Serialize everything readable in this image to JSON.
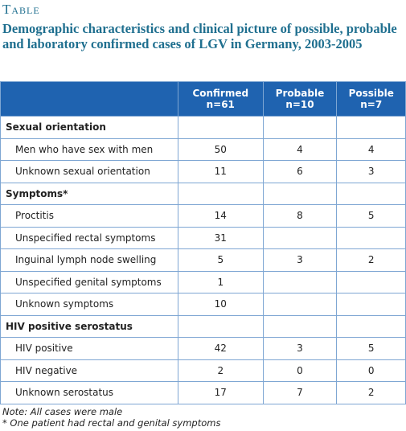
{
  "label": "Table",
  "title": "Demographic characteristics and clinical picture of possible, probable and laboratory confirmed cases of LGV in Germany, 2003-2005",
  "table": {
    "columns": [
      {
        "name": "Confirmed",
        "n": "n=61"
      },
      {
        "name": "Probable",
        "n": "n=10"
      },
      {
        "name": "Possible",
        "n": "n=7"
      }
    ],
    "sections": [
      {
        "title": "Sexual orientation",
        "rows": [
          {
            "label": "Men who have sex with men",
            "values": [
              50,
              4,
              4
            ]
          },
          {
            "label": "Unknown sexual orientation",
            "values": [
              11,
              6,
              3
            ]
          }
        ]
      },
      {
        "title": "Symptoms*",
        "rows": [
          {
            "label": "Proctitis",
            "values": [
              14,
              8,
              5
            ]
          },
          {
            "label": "Unspecified rectal symptoms",
            "values": [
              31,
              null,
              null
            ]
          },
          {
            "label": "Inguinal lymph node swelling",
            "values": [
              5,
              3,
              2
            ]
          },
          {
            "label": "Unspecified genital symptoms",
            "values": [
              1,
              null,
              null
            ]
          },
          {
            "label": "Unknown symptoms",
            "values": [
              10,
              null,
              null
            ]
          }
        ]
      },
      {
        "title": "HIV positive serostatus",
        "rows": [
          {
            "label": "HIV positive",
            "values": [
              42,
              3,
              5
            ]
          },
          {
            "label": "HIV negative",
            "values": [
              2,
              0,
              0
            ]
          },
          {
            "label": "Unknown serostatus",
            "values": [
              17,
              7,
              2
            ]
          }
        ]
      }
    ]
  },
  "notes": [
    "Note: All cases were male",
    "* One patient had rectal and genital symptoms"
  ]
}
